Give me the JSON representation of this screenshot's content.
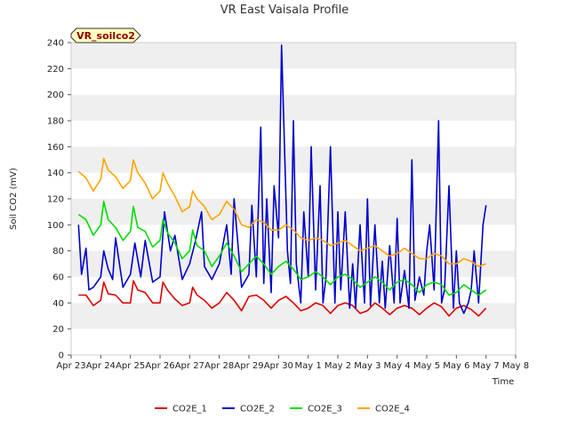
{
  "chart_data": {
    "type": "line",
    "title": "VR East Vaisala Profile",
    "xlabel": "Time",
    "ylabel": "Soil CO2 (mV)",
    "tag": "VR_soilco2",
    "ylim": [
      0,
      240
    ],
    "yticks": [
      0,
      20,
      40,
      60,
      80,
      100,
      120,
      140,
      160,
      180,
      200,
      220,
      240
    ],
    "xlim": [
      0,
      15
    ],
    "xticks": [
      {
        "value": 0,
        "label": "Apr 23"
      },
      {
        "value": 1,
        "label": "Apr 24"
      },
      {
        "value": 2,
        "label": "Apr 25"
      },
      {
        "value": 3,
        "label": "Apr 26"
      },
      {
        "value": 4,
        "label": "Apr 27"
      },
      {
        "value": 5,
        "label": "Apr 28"
      },
      {
        "value": 6,
        "label": "Apr 29"
      },
      {
        "value": 7,
        "label": "Apr 30"
      },
      {
        "value": 8,
        "label": "May 1"
      },
      {
        "value": 9,
        "label": "May 2"
      },
      {
        "value": 10,
        "label": "May 3"
      },
      {
        "value": 11,
        "label": "May 4"
      },
      {
        "value": 12,
        "label": "May 5"
      },
      {
        "value": 13,
        "label": "May 6"
      },
      {
        "value": 14,
        "label": "May 7"
      },
      {
        "value": 15,
        "label": "May 8"
      }
    ],
    "grid": "horizontal bands",
    "legend_position": "bottom",
    "series": [
      {
        "name": "CO2E_1",
        "color": "#dd0000",
        "x": [
          0.25,
          0.5,
          0.75,
          1.0,
          1.1,
          1.25,
          1.5,
          1.75,
          2.0,
          2.1,
          2.25,
          2.5,
          2.75,
          3.0,
          3.1,
          3.25,
          3.5,
          3.75,
          4.0,
          4.1,
          4.25,
          4.5,
          4.75,
          5.0,
          5.25,
          5.5,
          5.75,
          6.0,
          6.25,
          6.5,
          6.75,
          7.0,
          7.25,
          7.5,
          7.75,
          8.0,
          8.25,
          8.5,
          8.75,
          9.0,
          9.25,
          9.5,
          9.75,
          10.0,
          10.25,
          10.5,
          10.75,
          11.0,
          11.25,
          11.5,
          11.75,
          12.0,
          12.25,
          12.5,
          12.75,
          13.0,
          13.25,
          13.5,
          13.75,
          14.0
        ],
        "y": [
          46,
          46,
          38,
          42,
          56,
          47,
          46,
          40,
          40,
          57,
          50,
          48,
          40,
          40,
          56,
          50,
          43,
          38,
          40,
          52,
          46,
          42,
          36,
          40,
          48,
          42,
          34,
          45,
          46,
          42,
          36,
          42,
          45,
          40,
          34,
          36,
          40,
          38,
          32,
          38,
          40,
          38,
          32,
          34,
          40,
          36,
          31,
          36,
          38,
          36,
          31,
          36,
          40,
          37,
          30,
          36,
          38,
          35,
          30,
          36
        ]
      },
      {
        "name": "CO2E_2",
        "color": "#0000cc",
        "x": [
          0.25,
          0.35,
          0.5,
          0.6,
          0.75,
          1.0,
          1.1,
          1.25,
          1.4,
          1.5,
          1.75,
          2.0,
          2.15,
          2.35,
          2.5,
          2.75,
          3.0,
          3.15,
          3.35,
          3.5,
          3.75,
          4.0,
          4.2,
          4.4,
          4.5,
          4.75,
          5.0,
          5.25,
          5.4,
          5.5,
          5.75,
          6.0,
          6.1,
          6.25,
          6.4,
          6.5,
          6.6,
          6.75,
          6.85,
          7.0,
          7.1,
          7.2,
          7.3,
          7.4,
          7.5,
          7.6,
          7.75,
          7.85,
          8.0,
          8.1,
          8.25,
          8.4,
          8.5,
          8.6,
          8.75,
          8.9,
          9.0,
          9.1,
          9.25,
          9.4,
          9.5,
          9.6,
          9.75,
          9.9,
          10.0,
          10.1,
          10.25,
          10.4,
          10.5,
          10.6,
          10.75,
          10.9,
          11.0,
          11.1,
          11.25,
          11.4,
          11.5,
          11.6,
          11.75,
          11.9,
          12.0,
          12.1,
          12.25,
          12.4,
          12.5,
          12.6,
          12.75,
          12.9,
          13.0,
          13.1,
          13.25,
          13.4,
          13.5,
          13.6,
          13.75,
          13.9,
          14.0
        ],
        "y": [
          100,
          62,
          82,
          50,
          52,
          60,
          80,
          66,
          58,
          90,
          52,
          62,
          86,
          60,
          88,
          56,
          60,
          110,
          80,
          92,
          58,
          70,
          88,
          110,
          68,
          58,
          70,
          100,
          62,
          120,
          52,
          62,
          115,
          60,
          175,
          55,
          120,
          48,
          130,
          90,
          238,
          160,
          80,
          55,
          180,
          70,
          40,
          110,
          60,
          160,
          50,
          130,
          40,
          60,
          160,
          40,
          110,
          50,
          110,
          36,
          70,
          36,
          100,
          40,
          120,
          38,
          100,
          40,
          72,
          36,
          84,
          40,
          105,
          40,
          65,
          36,
          150,
          42,
          60,
          46,
          80,
          100,
          50,
          180,
          40,
          50,
          130,
          36,
          80,
          40,
          32,
          40,
          50,
          80,
          40,
          100,
          115
        ]
      },
      {
        "name": "CO2E_3",
        "color": "#00dd00",
        "x": [
          0.25,
          0.5,
          0.75,
          1.0,
          1.1,
          1.25,
          1.5,
          1.75,
          2.0,
          2.1,
          2.25,
          2.5,
          2.75,
          3.0,
          3.1,
          3.25,
          3.5,
          3.75,
          4.0,
          4.1,
          4.25,
          4.5,
          4.75,
          5.0,
          5.25,
          5.5,
          5.75,
          6.0,
          6.25,
          6.5,
          6.75,
          7.0,
          7.25,
          7.5,
          7.75,
          8.0,
          8.25,
          8.5,
          8.75,
          9.0,
          9.25,
          9.5,
          9.75,
          10.0,
          10.25,
          10.5,
          10.75,
          11.0,
          11.25,
          11.5,
          11.75,
          12.0,
          12.25,
          12.5,
          12.75,
          13.0,
          13.25,
          13.5,
          13.75,
          14.0
        ],
        "y": [
          108,
          104,
          92,
          100,
          118,
          104,
          98,
          88,
          95,
          114,
          98,
          95,
          83,
          88,
          104,
          94,
          86,
          74,
          80,
          96,
          84,
          80,
          68,
          76,
          86,
          76,
          64,
          70,
          76,
          70,
          62,
          68,
          72,
          66,
          58,
          60,
          64,
          60,
          54,
          60,
          62,
          58,
          52,
          56,
          60,
          56,
          50,
          56,
          58,
          54,
          48,
          54,
          56,
          54,
          46,
          48,
          54,
          50,
          46,
          50
        ]
      },
      {
        "name": "CO2E_4",
        "color": "#ffa500",
        "x": [
          0.25,
          0.5,
          0.75,
          1.0,
          1.1,
          1.25,
          1.5,
          1.75,
          2.0,
          2.1,
          2.25,
          2.5,
          2.75,
          3.0,
          3.1,
          3.25,
          3.5,
          3.75,
          4.0,
          4.1,
          4.25,
          4.5,
          4.75,
          5.0,
          5.25,
          5.5,
          5.75,
          6.0,
          6.25,
          6.5,
          6.75,
          7.0,
          7.25,
          7.5,
          7.75,
          8.0,
          8.25,
          8.5,
          8.75,
          9.0,
          9.25,
          9.5,
          9.75,
          10.0,
          10.25,
          10.5,
          10.75,
          11.0,
          11.25,
          11.5,
          11.75,
          12.0,
          12.25,
          12.5,
          12.75,
          13.0,
          13.25,
          13.5,
          13.75,
          14.0
        ],
        "y": [
          141,
          136,
          126,
          135,
          151,
          142,
          137,
          128,
          134,
          150,
          140,
          132,
          120,
          126,
          140,
          132,
          122,
          110,
          114,
          126,
          120,
          114,
          104,
          108,
          118,
          112,
          100,
          98,
          104,
          102,
          96,
          96,
          100,
          96,
          90,
          88,
          90,
          88,
          84,
          86,
          88,
          84,
          80,
          82,
          84,
          80,
          76,
          78,
          82,
          78,
          74,
          74,
          78,
          76,
          70,
          70,
          74,
          72,
          68,
          70
        ]
      }
    ]
  }
}
